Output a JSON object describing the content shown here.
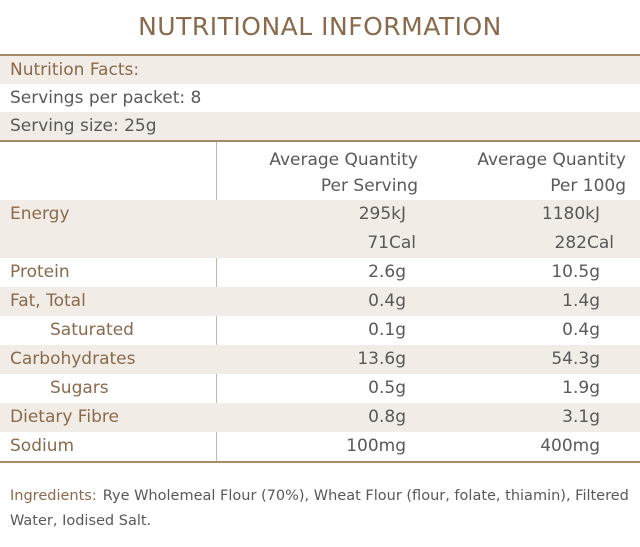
{
  "title": "NUTRITIONAL INFORMATION",
  "facts": {
    "heading": "Nutrition Facts:",
    "servings": "Servings per packet: 8",
    "serving_size": "Serving size: 25g"
  },
  "table": {
    "col1_line1": "Average Quantity",
    "col1_line2": "Per Serving",
    "col2_line1": "Average Quantity",
    "col2_line2": "Per 100g",
    "rows": [
      {
        "name": "Energy",
        "per_serving": "295kJ",
        "per_100g": "1180kJ",
        "per_serving_2": "71Cal",
        "per_100g_2": "282Cal"
      },
      {
        "name": "Protein",
        "per_serving": "2.6g",
        "per_100g": "10.5g"
      },
      {
        "name": "Fat, Total",
        "per_serving": "0.4g",
        "per_100g": "1.4g"
      },
      {
        "name": "Saturated",
        "per_serving": "0.1g",
        "per_100g": "0.4g"
      },
      {
        "name": "Carbohydrates",
        "per_serving": "13.6g",
        "per_100g": "54.3g"
      },
      {
        "name": "Sugars",
        "per_serving": "0.5g",
        "per_100g": "1.9g"
      },
      {
        "name": "Dietary Fibre",
        "per_serving": "0.8g",
        "per_100g": "3.1g"
      },
      {
        "name": "Sodium",
        "per_serving": "100mg",
        "per_100g": "400mg"
      }
    ]
  },
  "ingredients": {
    "label": "Ingredients:",
    "text": "Rye Wholemeal Flour (70%), Wheat Flour (flour, folate, thiamin), Filtered Water, Iodised Salt."
  }
}
